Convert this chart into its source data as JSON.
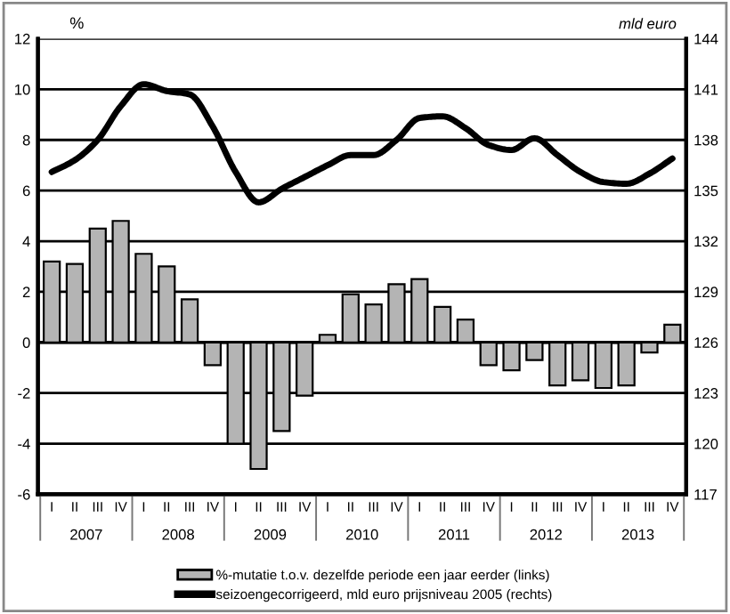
{
  "chart_data": {
    "type": "bar",
    "ylabel": "%",
    "y2label": "mld euro",
    "categories": [
      "I",
      "II",
      "III",
      "IV",
      "I",
      "II",
      "III",
      "IV",
      "I",
      "II",
      "III",
      "IV",
      "I",
      "II",
      "III",
      "IV",
      "I",
      "II",
      "III",
      "IV",
      "I",
      "II",
      "III",
      "IV",
      "I",
      "II",
      "III",
      "IV"
    ],
    "annotations": [
      "2007",
      "2008",
      "2009",
      "2010",
      "2011",
      "2012",
      "2013"
    ],
    "series": [
      {
        "name": "%-mutatie t.o.v. dezelfde periode een jaar eerder (links)",
        "color": "#b4b4b4",
        "values": [
          3.2,
          3.1,
          4.5,
          4.8,
          3.5,
          3.0,
          1.7,
          -0.9,
          -4.0,
          -5.0,
          -3.5,
          -2.1,
          0.3,
          1.9,
          1.5,
          2.3,
          2.5,
          1.4,
          0.9,
          -0.9,
          -1.1,
          -0.7,
          -1.7,
          -1.5,
          -1.8,
          -1.7,
          -0.4,
          0.7
        ]
      },
      {
        "name": "seizoengecorrigeerd, mld euro prijsniveau 2005 (rechts)",
        "type": "line",
        "axis": "y2",
        "color": "#000000",
        "values": [
          136.1,
          136.8,
          138.0,
          140.0,
          141.3,
          140.9,
          140.7,
          138.8,
          136.1,
          134.3,
          135.1,
          135.8,
          136.5,
          137.1,
          137.1,
          138.0,
          139.3,
          139.4,
          138.7,
          137.7,
          137.4,
          138.1,
          137.1,
          136.1,
          135.5,
          135.4,
          136.0,
          136.9
        ]
      }
    ],
    "ylim": [
      -6,
      12
    ],
    "yticks": [
      -6,
      -4,
      -2,
      0,
      2,
      4,
      6,
      8,
      10,
      12
    ],
    "y2lim": [
      117,
      144
    ],
    "y2ticks": [
      117,
      120,
      123,
      126,
      129,
      132,
      135,
      138,
      141,
      144
    ],
    "grid": "y",
    "legend": "bottom",
    "line_style": "solid",
    "marker": "none"
  }
}
